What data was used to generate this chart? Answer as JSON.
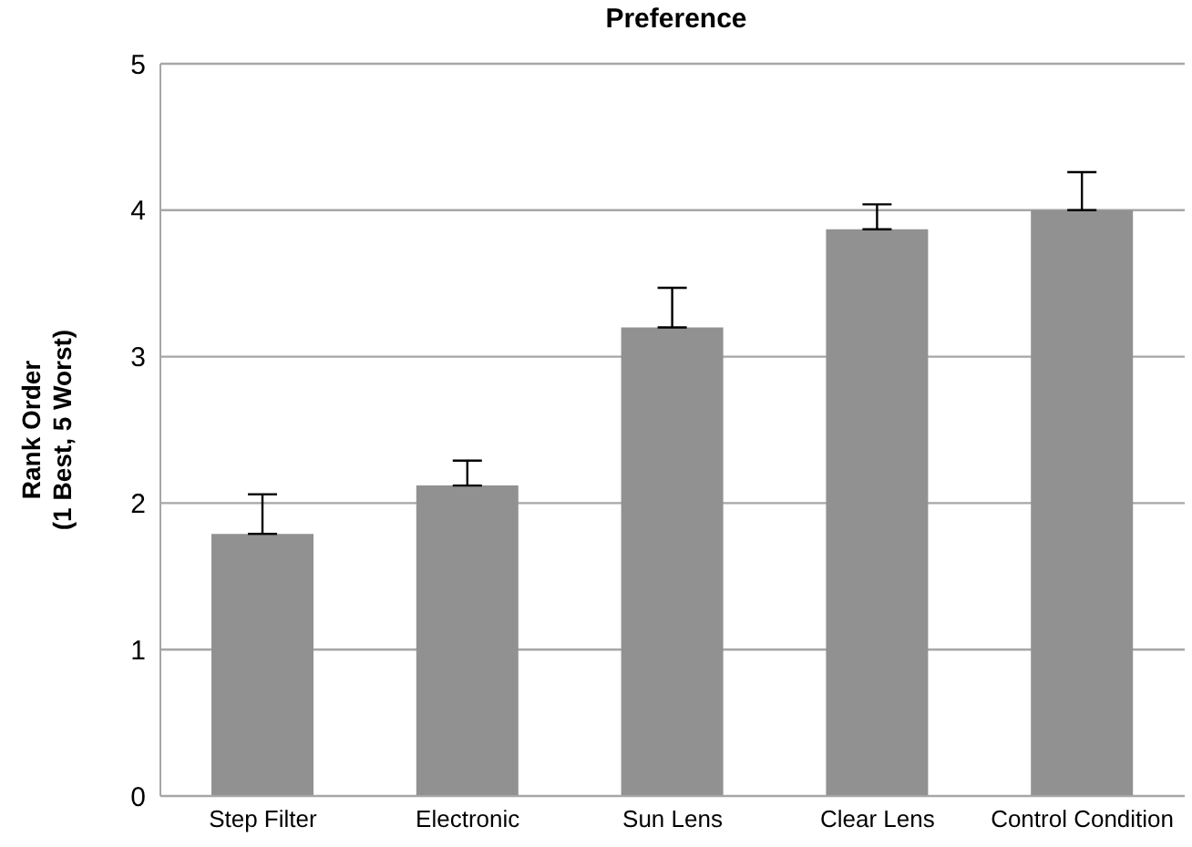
{
  "chart_data": {
    "type": "bar",
    "title": "Preference",
    "ylabel": "Rank Order\n(1 Best, 5 Worst)",
    "categories": [
      "Step Filter",
      "Electronic",
      "Sun Lens",
      "Clear Lens",
      "Control Condition"
    ],
    "values": [
      1.79,
      2.12,
      3.2,
      3.87,
      4.0
    ],
    "errors": [
      [
        1.79,
        2.06
      ],
      [
        2.12,
        2.29
      ],
      [
        3.2,
        3.47
      ],
      [
        3.87,
        4.04
      ],
      [
        4.0,
        4.26
      ]
    ],
    "color": "#919191",
    "ylim": [
      0,
      5
    ],
    "yticks": [
      0,
      1,
      2,
      3,
      4,
      5
    ],
    "grid": "y"
  }
}
